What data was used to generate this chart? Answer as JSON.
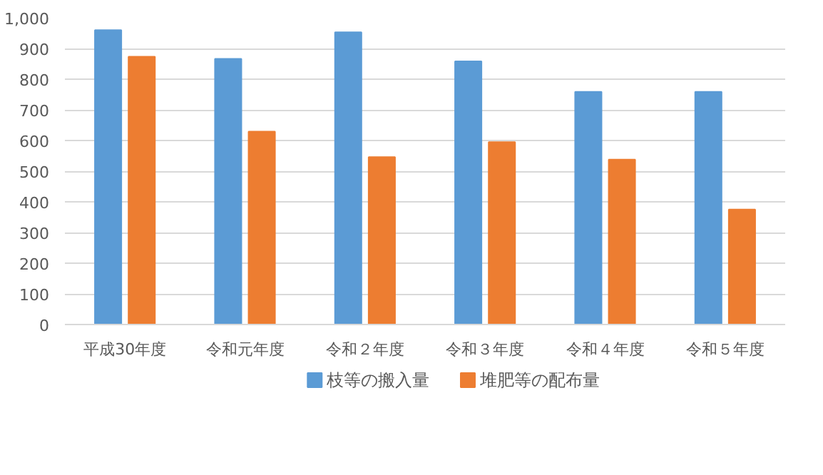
{
  "chart_data": {
    "type": "bar",
    "categories": [
      "平成30年度",
      "令和元年度",
      "令和２年度",
      "令和３年度",
      "令和４年度",
      "令和５年度"
    ],
    "series": [
      {
        "name": "枝等の搬入量",
        "color": "#5b9bd5",
        "values": [
          960,
          866,
          953,
          858,
          759,
          759
        ]
      },
      {
        "name": "堆肥等の配布量",
        "color": "#ed7d31",
        "values": [
          873,
          629,
          546,
          595,
          538,
          375
        ]
      }
    ],
    "ylim": [
      0,
      1000
    ],
    "yticks": [
      0,
      100,
      200,
      300,
      400,
      500,
      600,
      700,
      800,
      900,
      {
        "value": 1000,
        "label": "1,000"
      }
    ],
    "grid": "y",
    "legend": "bottom"
  }
}
